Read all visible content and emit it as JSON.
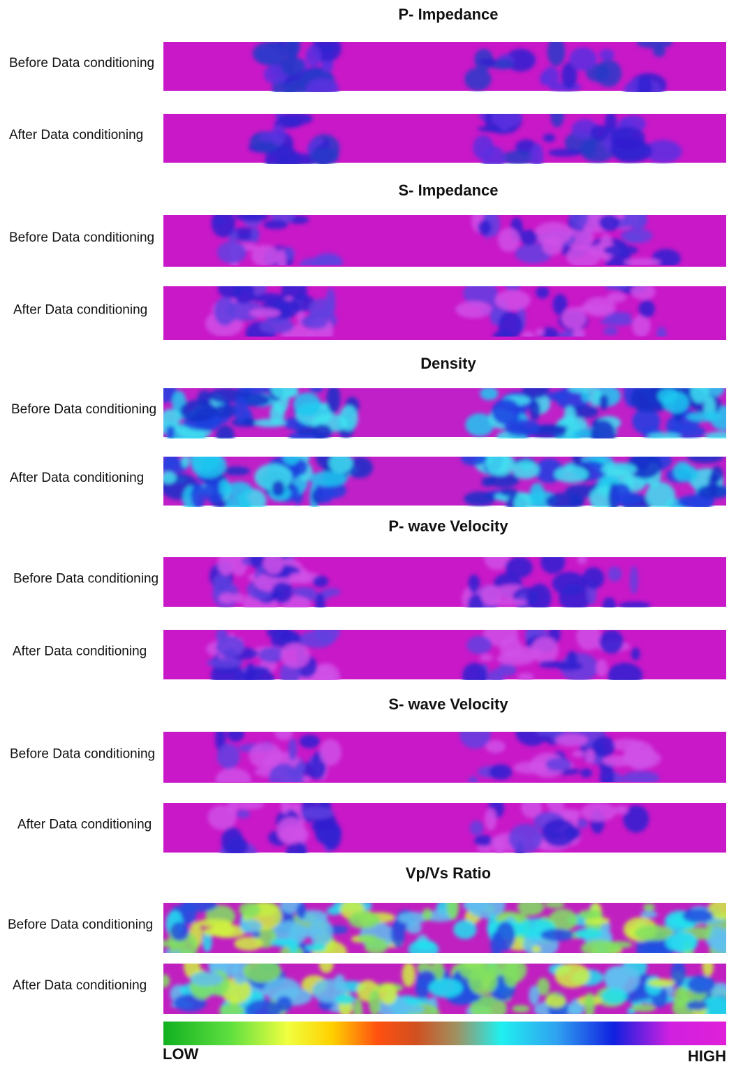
{
  "sections": [
    {
      "title": "P- Impedance",
      "rows": [
        {
          "label": "Before Data conditioning"
        },
        {
          "label": "After Data conditioning"
        }
      ]
    },
    {
      "title": "S- Impedance",
      "rows": [
        {
          "label": "Before Data conditioning"
        },
        {
          "label": "After Data conditioning"
        }
      ]
    },
    {
      "title": "Density",
      "rows": [
        {
          "label": "Before Data conditioning"
        },
        {
          "label": "After Data conditioning"
        }
      ]
    },
    {
      "title": "P- wave Velocity",
      "rows": [
        {
          "label": "Before Data conditioning"
        },
        {
          "label": "After Data conditioning"
        }
      ]
    },
    {
      "title": "S- wave Velocity",
      "rows": [
        {
          "label": "Before Data conditioning"
        },
        {
          "label": "After Data conditioning"
        }
      ]
    },
    {
      "title": "Vp/Vs Ratio",
      "rows": [
        {
          "label": "Before Data conditioning"
        },
        {
          "label": "After Data conditioning"
        }
      ]
    }
  ],
  "colorbar": {
    "low": "LOW",
    "high": "HIGH"
  }
}
